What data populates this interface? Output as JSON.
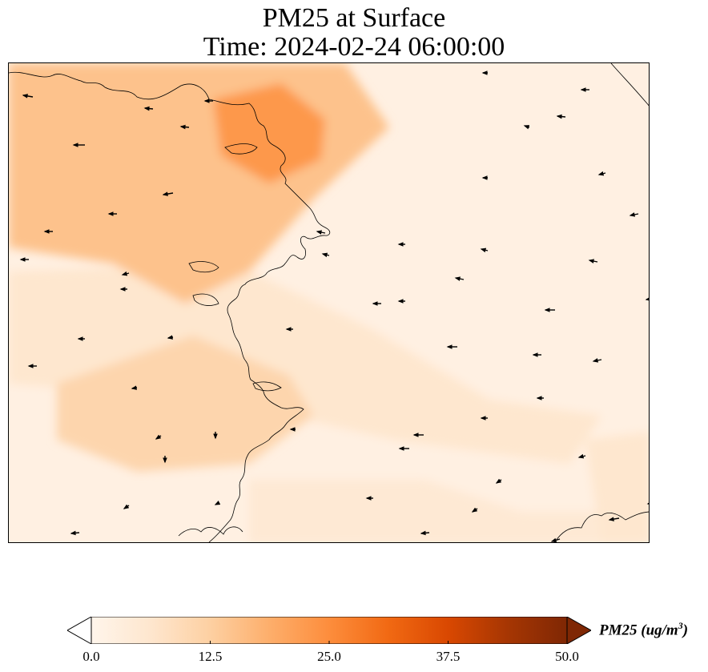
{
  "title": {
    "line1": "PM25 at Surface",
    "line2": "Time: 2024-02-24 06:00:00"
  },
  "colorbar": {
    "label_text": "PM25 (ug/m",
    "label_exponent": "3",
    "label_close": ")",
    "min": 0.0,
    "max": 50.0,
    "extend": "both",
    "ticks": [
      "0.0",
      "12.5",
      "25.0",
      "37.5",
      "50.0"
    ],
    "colormap": [
      "#fff5eb",
      "#fee6ce",
      "#fdd0a2",
      "#fdae6b",
      "#fd8d3c",
      "#f16913",
      "#d94801",
      "#a63603",
      "#7f2704"
    ],
    "colors": {
      "under": "#ffffff",
      "over": "#7f2704"
    }
  },
  "map": {
    "variable": "PM25",
    "level": "Surface",
    "coastline_color": "#000000",
    "wind_vector_color": "#000000",
    "background_value": 2.0,
    "concentration_hotspots": [
      {
        "name": "northwest-peak",
        "pm25": 23.0
      },
      {
        "name": "northwest-plume",
        "pm25": 15.0
      },
      {
        "name": "southwest-patch",
        "pm25": 11.0
      },
      {
        "name": "central-band",
        "pm25": 6.0
      },
      {
        "name": "southeast-patch",
        "pm25": 5.0
      },
      {
        "name": "east-edge",
        "pm25": 6.0
      }
    ]
  }
}
